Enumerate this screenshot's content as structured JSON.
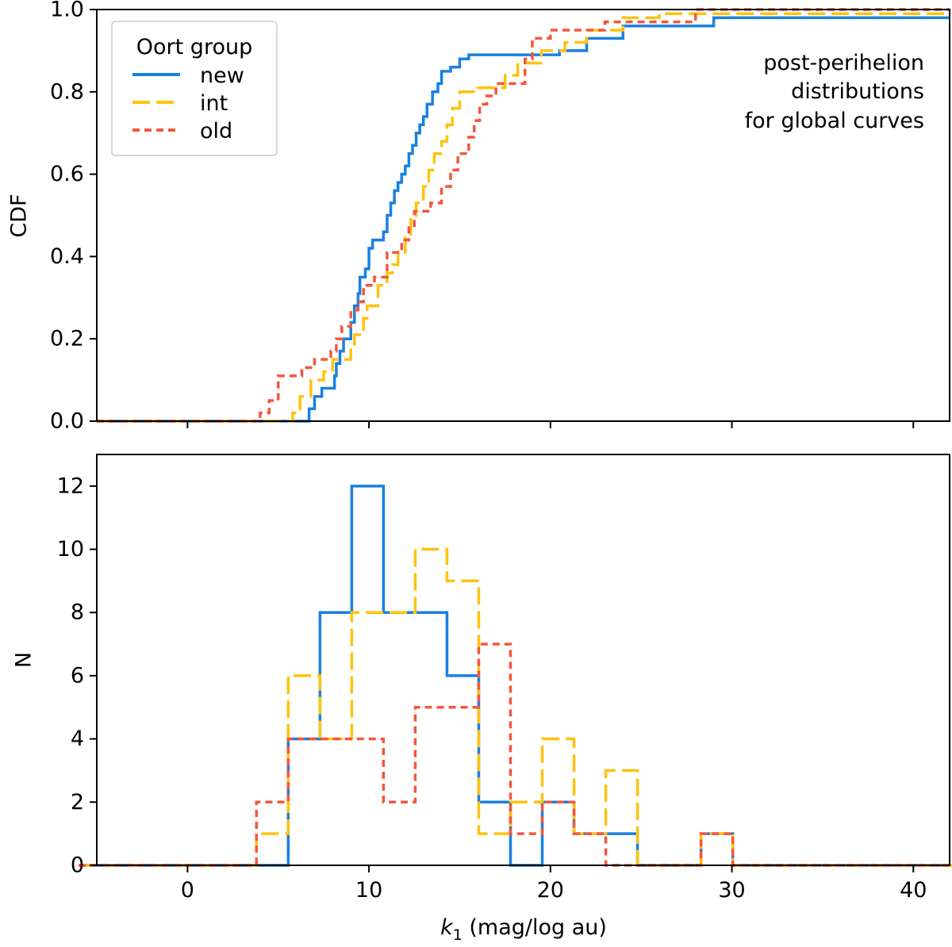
{
  "colors": {
    "new": "#1a80e0",
    "int": "#ffc20e",
    "old": "#f4573c",
    "axis": "#000000"
  },
  "chart_data": [
    {
      "type": "line",
      "panel": "top",
      "ylabel": "CDF",
      "xlim": [
        -5,
        42
      ],
      "ylim": [
        0,
        1.0
      ],
      "yticks": [
        0.0,
        0.2,
        0.4,
        0.6,
        0.8,
        1.0
      ],
      "ytick_labels": [
        "0.0",
        "0.2",
        "0.4",
        "0.6",
        "0.8",
        "1.0"
      ],
      "annotation": [
        "post-perihelion",
        "distributions",
        "for global curves"
      ],
      "legend": {
        "title": "Oort group",
        "placement": "top-left",
        "entries": [
          "new",
          "int",
          "old"
        ]
      },
      "series": [
        {
          "name": "new",
          "style": "solid",
          "points": [
            [
              6.5,
              0.0
            ],
            [
              6.7,
              0.03
            ],
            [
              7.0,
              0.06
            ],
            [
              7.4,
              0.08
            ],
            [
              8.1,
              0.11
            ],
            [
              8.2,
              0.14
            ],
            [
              8.4,
              0.17
            ],
            [
              8.6,
              0.2
            ],
            [
              9.0,
              0.24
            ],
            [
              9.2,
              0.28
            ],
            [
              9.4,
              0.31
            ],
            [
              9.5,
              0.35
            ],
            [
              9.8,
              0.37
            ],
            [
              10.0,
              0.42
            ],
            [
              10.2,
              0.44
            ],
            [
              10.8,
              0.46
            ],
            [
              11.0,
              0.5
            ],
            [
              11.2,
              0.53
            ],
            [
              11.4,
              0.56
            ],
            [
              11.6,
              0.58
            ],
            [
              11.8,
              0.6
            ],
            [
              12.0,
              0.62
            ],
            [
              12.2,
              0.65
            ],
            [
              12.4,
              0.67
            ],
            [
              12.6,
              0.7
            ],
            [
              12.8,
              0.72
            ],
            [
              13.0,
              0.74
            ],
            [
              13.2,
              0.77
            ],
            [
              13.5,
              0.8
            ],
            [
              13.8,
              0.82
            ],
            [
              14.0,
              0.85
            ],
            [
              14.5,
              0.86
            ],
            [
              15.0,
              0.88
            ],
            [
              15.5,
              0.89
            ],
            [
              20.5,
              0.9
            ],
            [
              22.0,
              0.93
            ],
            [
              24.0,
              0.96
            ],
            [
              29.0,
              0.98
            ]
          ]
        },
        {
          "name": "int",
          "style": "dash-long",
          "points": [
            [
              5.5,
              0.0
            ],
            [
              5.8,
              0.02
            ],
            [
              6.2,
              0.06
            ],
            [
              6.8,
              0.1
            ],
            [
              7.5,
              0.12
            ],
            [
              8.0,
              0.15
            ],
            [
              9.0,
              0.18
            ],
            [
              9.2,
              0.21
            ],
            [
              9.7,
              0.25
            ],
            [
              9.9,
              0.28
            ],
            [
              10.5,
              0.33
            ],
            [
              11.0,
              0.36
            ],
            [
              11.3,
              0.38
            ],
            [
              11.6,
              0.41
            ],
            [
              12.0,
              0.45
            ],
            [
              12.3,
              0.49
            ],
            [
              12.6,
              0.53
            ],
            [
              13.0,
              0.57
            ],
            [
              13.3,
              0.61
            ],
            [
              13.6,
              0.65
            ],
            [
              14.0,
              0.68
            ],
            [
              14.3,
              0.72
            ],
            [
              14.6,
              0.76
            ],
            [
              15.0,
              0.8
            ],
            [
              16.0,
              0.81
            ],
            [
              17.5,
              0.84
            ],
            [
              18.2,
              0.87
            ],
            [
              19.5,
              0.9
            ],
            [
              20.8,
              0.92
            ],
            [
              22.0,
              0.95
            ],
            [
              24.0,
              0.98
            ],
            [
              26.0,
              0.99
            ]
          ]
        },
        {
          "name": "old",
          "style": "dash-short",
          "points": [
            [
              3.9,
              0.0
            ],
            [
              4.0,
              0.02
            ],
            [
              4.5,
              0.05
            ],
            [
              5.0,
              0.11
            ],
            [
              6.3,
              0.13
            ],
            [
              7.0,
              0.15
            ],
            [
              7.9,
              0.17
            ],
            [
              8.2,
              0.2
            ],
            [
              8.5,
              0.23
            ],
            [
              9.0,
              0.27
            ],
            [
              9.4,
              0.29
            ],
            [
              9.7,
              0.33
            ],
            [
              10.3,
              0.35
            ],
            [
              11.0,
              0.41
            ],
            [
              11.8,
              0.44
            ],
            [
              12.2,
              0.47
            ],
            [
              12.5,
              0.51
            ],
            [
              13.4,
              0.53
            ],
            [
              14.0,
              0.57
            ],
            [
              14.5,
              0.61
            ],
            [
              14.9,
              0.65
            ],
            [
              15.5,
              0.69
            ],
            [
              15.8,
              0.73
            ],
            [
              16.1,
              0.77
            ],
            [
              16.5,
              0.79
            ],
            [
              17.0,
              0.82
            ],
            [
              18.6,
              0.88
            ],
            [
              19.0,
              0.93
            ],
            [
              20.0,
              0.95
            ],
            [
              23.0,
              0.97
            ],
            [
              28.0,
              1.0
            ]
          ]
        }
      ]
    },
    {
      "type": "bar",
      "histtype": "step",
      "panel": "bottom",
      "xlabel_italic": "k",
      "xlabel_sub": "1",
      "xlabel_rest": " (mag/log au)",
      "ylabel": "N",
      "xlim": [
        -5,
        42
      ],
      "ylim": [
        0,
        13
      ],
      "xticks": [
        0,
        10,
        20,
        30,
        40
      ],
      "xtick_labels": [
        "0",
        "10",
        "20",
        "30",
        "40"
      ],
      "yticks": [
        0,
        2,
        4,
        6,
        8,
        10,
        12
      ],
      "ytick_labels": [
        "0",
        "2",
        "4",
        "6",
        "8",
        "10",
        "12"
      ],
      "bin_edges": [
        -6.0,
        3.8,
        5.55,
        7.3,
        9.05,
        10.8,
        12.55,
        14.3,
        16.05,
        17.8,
        19.55,
        21.3,
        23.05,
        24.8,
        26.55,
        28.3,
        30.05,
        43.0
      ],
      "series": [
        {
          "name": "new",
          "style": "solid",
          "values": [
            0,
            0,
            4,
            8,
            12,
            8,
            8,
            6,
            2,
            0,
            2,
            1,
            1,
            0,
            0,
            1,
            0
          ]
        },
        {
          "name": "int",
          "style": "dash-long",
          "values": [
            0,
            1,
            6,
            4,
            8,
            8,
            10,
            9,
            1,
            2,
            4,
            1,
            3,
            0,
            0,
            1,
            0
          ]
        },
        {
          "name": "old",
          "style": "dash-short",
          "values": [
            0,
            2,
            4,
            4,
            4,
            2,
            5,
            5,
            7,
            1,
            2,
            1,
            0,
            0,
            0,
            1,
            0
          ]
        }
      ]
    }
  ]
}
